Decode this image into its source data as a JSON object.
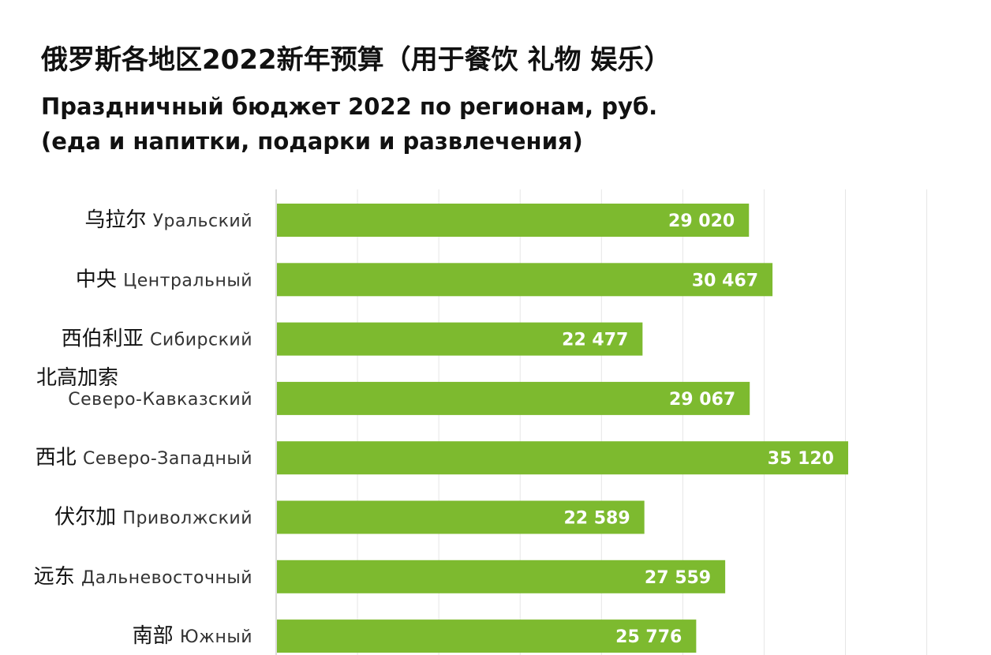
{
  "title_zh": "俄罗斯各地区2022新年预算（用于餐饮 礼物 娱乐）",
  "title_ru_line1": "Праздничный бюджет 2022 по регионам, руб.",
  "title_ru_line2": "(еда и напитки, подарки и развлечения)",
  "colors": {
    "bar": "#7dba2f",
    "grid": "#e6e6e6",
    "axis": "#cfcfcf"
  },
  "chart_data": {
    "type": "bar",
    "orientation": "horizontal",
    "title": "Праздничный бюджет 2022 по регионам, руб.",
    "categories": [
      {
        "zh": "乌拉尔",
        "ru": "Уральский",
        "value": 29020,
        "label": "29 020"
      },
      {
        "zh": "中央",
        "ru": "Центральный",
        "value": 30467,
        "label": "30 467"
      },
      {
        "zh": "西伯利亚",
        "ru": "Сибирский",
        "value": 22477,
        "label": "22 477"
      },
      {
        "zh": "北高加索",
        "ru": "Северо-Кавказский",
        "value": 29067,
        "label": "29 067"
      },
      {
        "zh": "西北",
        "ru": "Северо-Западный",
        "value": 35120,
        "label": "35 120"
      },
      {
        "zh": "伏尔加",
        "ru": "Приволжский",
        "value": 22589,
        "label": "22 589"
      },
      {
        "zh": "远东",
        "ru": "Дальневосточный",
        "value": 27559,
        "label": "27 559"
      },
      {
        "zh": "南部",
        "ru": "Южный",
        "value": 25776,
        "label": "25 776"
      }
    ],
    "xlim": [
      0,
      40000
    ],
    "grid": true,
    "legend": "none"
  }
}
